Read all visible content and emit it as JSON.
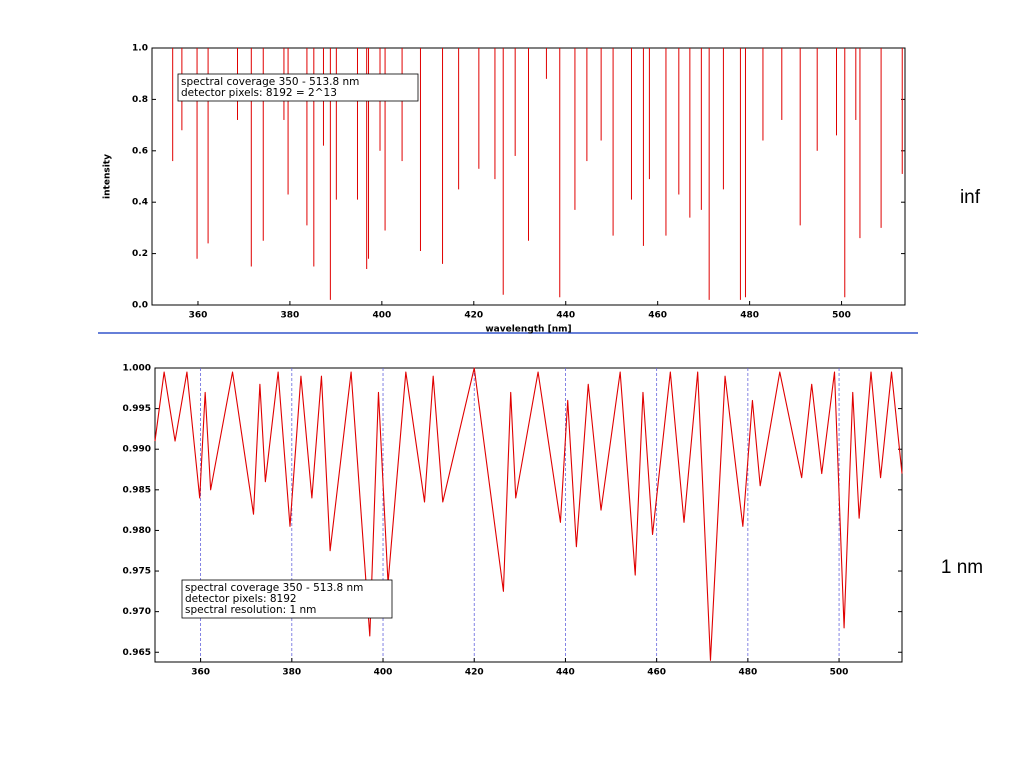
{
  "chart_data": [
    {
      "type": "spectrum",
      "color": "#e00000",
      "xlim": [
        350,
        513.8
      ],
      "ylim": [
        0,
        1
      ],
      "xticks": [
        360,
        380,
        400,
        420,
        440,
        460,
        480,
        500
      ],
      "yticks": [
        {
          "value": 0,
          "label": "0.0"
        },
        0.2,
        0.4,
        0.6,
        0.8,
        {
          "value": 1,
          "label": "1.0"
        }
      ],
      "xlabel": "wavelength [nm]",
      "ylabel": "intensity",
      "annotation": [
        "spectral coverage 350 - 513.8 nm",
        "detector pixels:  8192 = 2^13"
      ],
      "side_label": "inf",
      "xgrid": false,
      "x": [
        354.5,
        356.5,
        359.8,
        362.2,
        368.6,
        371.6,
        374.2,
        378.7,
        379.6,
        383.7,
        385.2,
        387.3,
        388.8,
        390.1,
        394.7,
        396.7,
        397.1,
        399.6,
        400.7,
        404.4,
        408.4,
        413.2,
        416.7,
        421.1,
        424.6,
        426.4,
        429.0,
        431.9,
        435.8,
        438.7,
        442.0,
        444.6,
        447.7,
        450.3,
        454.3,
        456.9,
        458.2,
        461.8,
        464.6,
        467.0,
        469.5,
        471.2,
        474.3,
        478.0,
        479.1,
        482.9,
        487.0,
        491.0,
        494.7,
        498.9,
        500.7,
        503.1,
        504.0,
        508.6,
        513.2
      ],
      "values": [
        0.56,
        0.68,
        0.18,
        0.24,
        0.72,
        0.15,
        0.25,
        0.72,
        0.43,
        0.31,
        0.15,
        0.62,
        0.02,
        0.41,
        0.41,
        0.14,
        0.18,
        0.6,
        0.29,
        0.56,
        0.21,
        0.16,
        0.45,
        0.53,
        0.49,
        0.04,
        0.58,
        0.25,
        0.88,
        0.03,
        0.37,
        0.56,
        0.64,
        0.27,
        0.41,
        0.23,
        0.49,
        0.27,
        0.43,
        0.34,
        0.37,
        0.02,
        0.45,
        0.02,
        0.03,
        0.64,
        0.72,
        0.31,
        0.6,
        0.66,
        0.03,
        0.72,
        0.26,
        0.3,
        0.51
      ]
    },
    {
      "type": "line",
      "color": "#e00000",
      "xlim": [
        350,
        513.8
      ],
      "ylim": [
        0.9638,
        1.0
      ],
      "xticks": [
        360,
        380,
        400,
        420,
        440,
        460,
        480,
        500
      ],
      "yticks": [
        0.965,
        {
          "value": 0.97,
          "label": "0.970"
        },
        0.975,
        {
          "value": 0.98,
          "label": "0.980"
        },
        0.985,
        {
          "value": 0.99,
          "label": "0.990"
        },
        0.995,
        {
          "value": 1.0,
          "label": "1.000"
        }
      ],
      "annotation": [
        "spectral coverage 350 - 513.8 nm",
        "detector pixels:  8192",
        "spectral resolution:  1 nm"
      ],
      "side_label": "1 nm",
      "xgrid": true,
      "x": [
        350,
        352,
        354.4,
        357,
        359.8,
        361,
        362.2,
        367,
        371.6,
        373,
        374.2,
        377,
        379.6,
        382,
        384.4,
        386.5,
        388.4,
        393,
        397.1,
        399,
        401.1,
        405,
        409.1,
        411,
        413.1,
        420,
        426.4,
        428,
        429.1,
        434,
        438.9,
        440.5,
        442.4,
        445,
        447.8,
        452,
        455.3,
        457,
        459.1,
        463,
        466.0,
        469,
        471.8,
        475,
        478.9,
        481,
        482.7,
        487,
        491.8,
        494,
        496.2,
        499,
        501.1,
        503,
        504.4,
        507,
        509.1,
        511.5,
        513.8
      ],
      "values": [
        0.991,
        0.9995,
        0.991,
        0.9995,
        0.984,
        0.997,
        0.985,
        0.9995,
        0.982,
        0.998,
        0.986,
        0.9995,
        0.9805,
        0.999,
        0.984,
        0.999,
        0.9775,
        0.9995,
        0.967,
        0.997,
        0.9735,
        0.9995,
        0.9835,
        0.999,
        0.9835,
        1.0,
        0.9725,
        0.997,
        0.984,
        0.9995,
        0.981,
        0.996,
        0.978,
        0.998,
        0.9825,
        0.9995,
        0.9745,
        0.997,
        0.9795,
        0.9995,
        0.981,
        0.9995,
        0.964,
        0.999,
        0.9805,
        0.996,
        0.9855,
        0.9995,
        0.9865,
        0.998,
        0.987,
        0.9995,
        0.968,
        0.997,
        0.9815,
        0.9995,
        0.9865,
        0.9995,
        0.987
      ]
    }
  ]
}
